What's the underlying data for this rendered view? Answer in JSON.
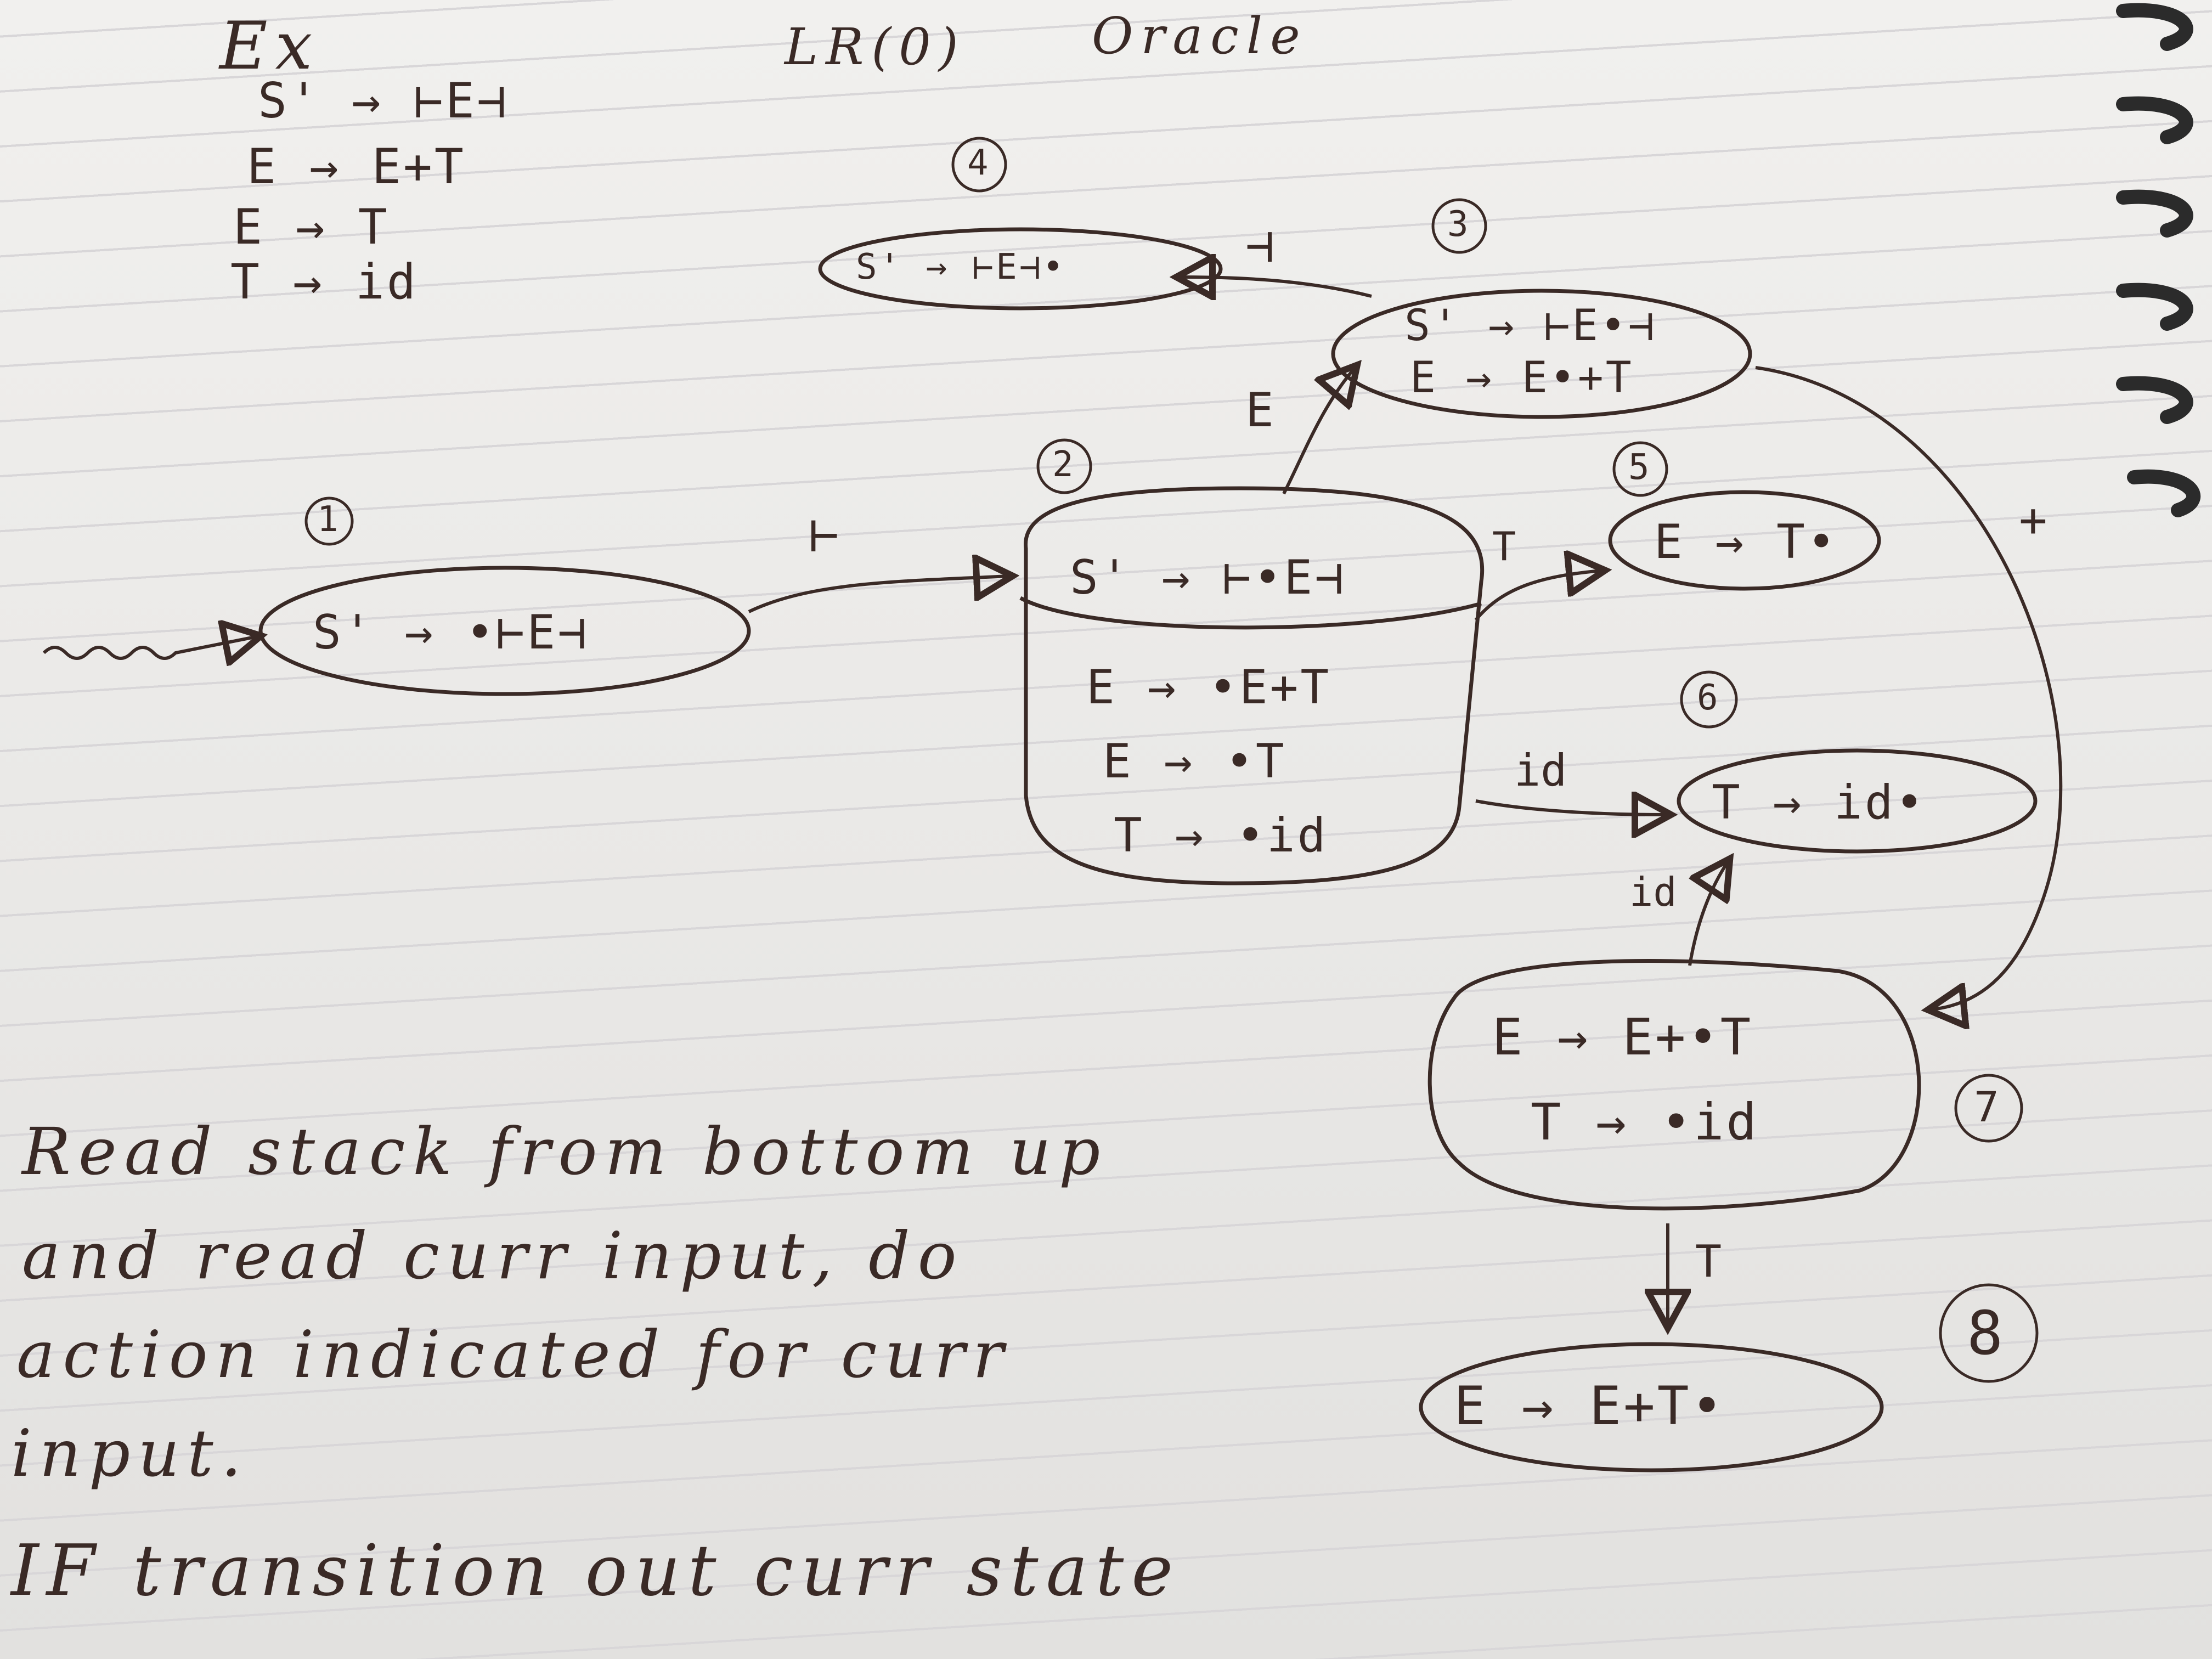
{
  "header": {
    "example_label": "Ex",
    "title_left": "LR(0)",
    "title_right": "Oracle"
  },
  "grammar": [
    "S' → ⊢E⊣",
    "E → E+T",
    "E → T",
    "T → id"
  ],
  "states": [
    {
      "number": "1",
      "items": [
        "S' → •⊢E⊣"
      ]
    },
    {
      "number": "2",
      "kernel": "S' → ⊢•E⊣",
      "items": [
        "E → •E+T",
        "E → •T",
        "T → •id"
      ]
    },
    {
      "number": "3",
      "items": [
        "S' → ⊢E•⊣",
        "E → E•+T"
      ]
    },
    {
      "number": "4",
      "items": [
        "S' → ⊢E⊣•"
      ]
    },
    {
      "number": "5",
      "items": [
        "E → T•"
      ]
    },
    {
      "number": "6",
      "items": [
        "T → id•"
      ]
    },
    {
      "number": "7",
      "items": [
        "E → E+•T",
        "T → •id"
      ]
    },
    {
      "number": "8",
      "items": [
        "E → E+T•"
      ]
    }
  ],
  "transitions": [
    {
      "from": "1",
      "to": "2",
      "label": "⊢"
    },
    {
      "from": "2",
      "to": "3",
      "label": "E"
    },
    {
      "from": "3",
      "to": "4",
      "label": "⊣"
    },
    {
      "from": "2",
      "to": "5",
      "label": "T"
    },
    {
      "from": "2",
      "to": "6",
      "label": "id"
    },
    {
      "from": "3",
      "to": "7",
      "label": "+"
    },
    {
      "from": "7",
      "to": "6",
      "label": "id"
    },
    {
      "from": "7",
      "to": "8",
      "label": "T"
    }
  ],
  "notes": [
    "Read stack from bottom up",
    "and read curr input, do",
    "action indicated for curr",
    "input.",
    "IF transition out curr state"
  ],
  "colors": {
    "ink": "#3a2a26",
    "paper": "#ecebe9",
    "rule_line": "#d8d6d8",
    "coil": "#2b2b2b"
  }
}
